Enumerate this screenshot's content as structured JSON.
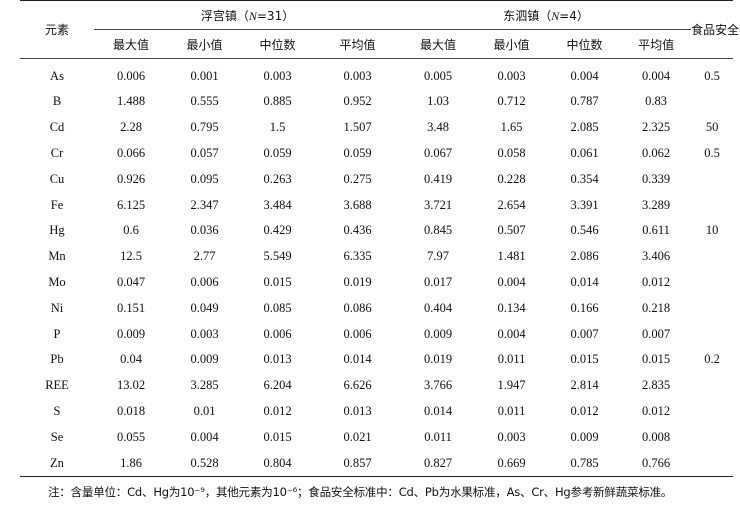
{
  "table": {
    "row_header": "元素",
    "group1": {
      "prefix": "浮宫镇（",
      "n_symbol": "N",
      "suffix": "=31）"
    },
    "group2": {
      "prefix": "东泗镇（",
      "n_symbol": "N",
      "suffix": "=4）"
    },
    "standard_header": "食品安全标准",
    "sub_headers": [
      "最大值",
      "最小值",
      "中位数",
      "平均值",
      "最大值",
      "最小值",
      "中位数",
      "平均值"
    ],
    "rows": [
      {
        "element": "As",
        "g1": [
          "0.006",
          "0.001",
          "0.003",
          "0.003"
        ],
        "g2": [
          "0.005",
          "0.003",
          "0.004",
          "0.004"
        ],
        "std": "0.5"
      },
      {
        "element": "B",
        "g1": [
          "1.488",
          "0.555",
          "0.885",
          "0.952"
        ],
        "g2": [
          "1.03",
          "0.712",
          "0.787",
          "0.83"
        ],
        "std": ""
      },
      {
        "element": "Cd",
        "g1": [
          "2.28",
          "0.795",
          "1.5",
          "1.507"
        ],
        "g2": [
          "3.48",
          "1.65",
          "2.085",
          "2.325"
        ],
        "std": "50"
      },
      {
        "element": "Cr",
        "g1": [
          "0.066",
          "0.057",
          "0.059",
          "0.059"
        ],
        "g2": [
          "0.067",
          "0.058",
          "0.061",
          "0.062"
        ],
        "std": "0.5"
      },
      {
        "element": "Cu",
        "g1": [
          "0.926",
          "0.095",
          "0.263",
          "0.275"
        ],
        "g2": [
          "0.419",
          "0.228",
          "0.354",
          "0.339"
        ],
        "std": ""
      },
      {
        "element": "Fe",
        "g1": [
          "6.125",
          "2.347",
          "3.484",
          "3.688"
        ],
        "g2": [
          "3.721",
          "2.654",
          "3.391",
          "3.289"
        ],
        "std": ""
      },
      {
        "element": "Hg",
        "g1": [
          "0.6",
          "0.036",
          "0.429",
          "0.436"
        ],
        "g2": [
          "0.845",
          "0.507",
          "0.546",
          "0.611"
        ],
        "std": "10"
      },
      {
        "element": "Mn",
        "g1": [
          "12.5",
          "2.77",
          "5.549",
          "6.335"
        ],
        "g2": [
          "7.97",
          "1.481",
          "2.086",
          "3.406"
        ],
        "std": ""
      },
      {
        "element": "Mo",
        "g1": [
          "0.047",
          "0.006",
          "0.015",
          "0.019"
        ],
        "g2": [
          "0.017",
          "0.004",
          "0.014",
          "0.012"
        ],
        "std": ""
      },
      {
        "element": "Ni",
        "g1": [
          "0.151",
          "0.049",
          "0.085",
          "0.086"
        ],
        "g2": [
          "0.404",
          "0.134",
          "0.166",
          "0.218"
        ],
        "std": ""
      },
      {
        "element": "P",
        "g1": [
          "0.009",
          "0.003",
          "0.006",
          "0.006"
        ],
        "g2": [
          "0.009",
          "0.004",
          "0.007",
          "0.007"
        ],
        "std": ""
      },
      {
        "element": "Pb",
        "g1": [
          "0.04",
          "0.009",
          "0.013",
          "0.014"
        ],
        "g2": [
          "0.019",
          "0.011",
          "0.015",
          "0.015"
        ],
        "std": "0.2"
      },
      {
        "element": "REE",
        "g1": [
          "13.02",
          "3.285",
          "6.204",
          "6.626"
        ],
        "g2": [
          "3.766",
          "1.947",
          "2.814",
          "2.835"
        ],
        "std": ""
      },
      {
        "element": "S",
        "g1": [
          "0.018",
          "0.01",
          "0.012",
          "0.013"
        ],
        "g2": [
          "0.014",
          "0.011",
          "0.012",
          "0.012"
        ],
        "std": ""
      },
      {
        "element": "Se",
        "g1": [
          "0.055",
          "0.004",
          "0.015",
          "0.021"
        ],
        "g2": [
          "0.011",
          "0.003",
          "0.009",
          "0.008"
        ],
        "std": ""
      },
      {
        "element": "Zn",
        "g1": [
          "1.86",
          "0.528",
          "0.804",
          "0.857"
        ],
        "g2": [
          "0.827",
          "0.669",
          "0.785",
          "0.766"
        ],
        "std": ""
      }
    ]
  },
  "note": "注：含量单位：Cd、Hg为10⁻⁹，其他元素为10⁻⁶；食品安全标准中：Cd、Pb为水果标准，As、Cr、Hg参考新鲜蔬菜标准。"
}
